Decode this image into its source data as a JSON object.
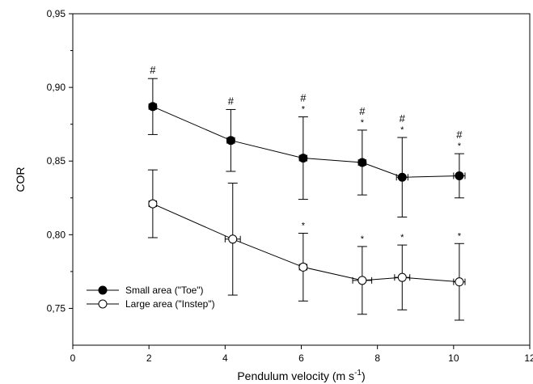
{
  "chart_data": {
    "type": "scatter",
    "xlabel": "Pendulum velocity (m s",
    "xlabel_sup": "-1",
    "xlabel_close": ")",
    "ylabel": "COR",
    "xlim": [
      0,
      12
    ],
    "ylim": [
      0.725,
      0.95
    ],
    "xticks": [
      0,
      2,
      4,
      6,
      8,
      10,
      12
    ],
    "xtick_labels": [
      "0",
      "2",
      "4",
      "6",
      "8",
      "10",
      "12"
    ],
    "yticks": [
      0.75,
      0.8,
      0.85,
      0.9,
      0.95
    ],
    "ytick_labels": [
      "0,75",
      "0,80",
      "0,85",
      "0,90",
      "0,95"
    ],
    "grid": false,
    "legend_position": "bottom-left",
    "series": [
      {
        "name": "Small area (\"Toe\")",
        "marker": "filled-circle",
        "color": "#000000",
        "x": [
          2.1,
          4.15,
          6.05,
          7.6,
          8.65,
          10.15
        ],
        "y": [
          0.887,
          0.864,
          0.852,
          0.849,
          0.839,
          0.84
        ],
        "y_err": [
          0.019,
          0.021,
          0.028,
          0.022,
          0.027,
          0.015
        ],
        "x_err": [
          0.1,
          0.1,
          0.1,
          0.1,
          0.15,
          0.15
        ],
        "annotations": [
          [
            "#"
          ],
          [
            "#"
          ],
          [
            "#",
            "*"
          ],
          [
            "#",
            "*"
          ],
          [
            "#",
            "*"
          ],
          [
            "#",
            "*"
          ]
        ]
      },
      {
        "name": "Large area (\"Instep\")",
        "marker": "open-circle",
        "color": "#000000",
        "x": [
          2.1,
          4.2,
          6.05,
          7.6,
          8.65,
          10.15
        ],
        "y": [
          0.821,
          0.797,
          0.778,
          0.769,
          0.771,
          0.768
        ],
        "y_err": [
          0.023,
          0.038,
          0.023,
          0.023,
          0.022,
          0.026
        ],
        "x_err": [
          0.1,
          0.2,
          0.1,
          0.25,
          0.2,
          0.15
        ],
        "annotations": [
          [],
          [],
          [
            "*"
          ],
          [
            "*"
          ],
          [
            "*"
          ],
          [
            "*"
          ]
        ]
      }
    ]
  }
}
